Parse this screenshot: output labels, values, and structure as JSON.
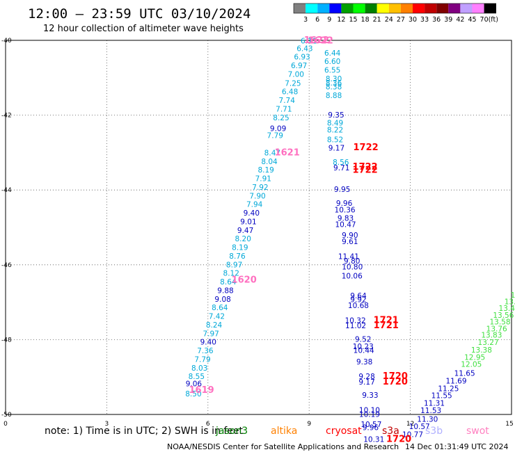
{
  "header": {
    "title": "12:00 — 23:59 UTC 03/10/2024",
    "subtitle": "12 hour collection of altimeter wave heights"
  },
  "color_scale": {
    "levels": [
      "3",
      "6",
      "9",
      "12",
      "15",
      "18",
      "21",
      "24",
      "27",
      "30",
      "33",
      "36",
      "39",
      "42",
      "45",
      "70"
    ],
    "unit": "(ft)",
    "colors": [
      "#808080",
      "#00ffff",
      "#00b0ff",
      "#0000ff",
      "#00a000",
      "#00ff00",
      "#008000",
      "#ffff00",
      "#ffc000",
      "#ff8000",
      "#ff0000",
      "#c00000",
      "#800000",
      "#800080",
      "#c0a0ff",
      "#ff80ff",
      "#000000"
    ]
  },
  "footer": {
    "note": "note:  1) Time is in UTC; 2) SWH is in feet",
    "satellites": [
      {
        "name": "jason3",
        "color": "#008000"
      },
      {
        "name": "altika",
        "color": "#ff8000"
      },
      {
        "name": "cryosat",
        "color": "#ff0000"
      },
      {
        "name": "s3a",
        "color": "#c00000"
      },
      {
        "name": "s3b",
        "color": "#b0b0ff"
      },
      {
        "name": "swot",
        "color": "#ff80c0"
      }
    ],
    "credit": "NOAA/NESDIS Center for Satellite Applications and Research",
    "timestamp": "14 Dec 01:31:49 UTC 2024"
  },
  "chart_data": {
    "type": "scatter",
    "xlabel": "",
    "ylabel": "",
    "xlim": [
      0,
      15
    ],
    "ylim": [
      -50,
      -40
    ],
    "x_ticks": [
      0,
      3,
      6,
      9,
      12,
      15
    ],
    "y_ticks": [
      -40,
      -42,
      -44,
      -46,
      -48,
      -50
    ],
    "x_tick_labels": [
      "0",
      "3",
      "6",
      "9",
      "12",
      "15"
    ],
    "y_tick_labels": [
      "-40",
      "-42",
      "-44",
      "-46",
      "-48",
      "-50"
    ],
    "grid": true,
    "series": [
      {
        "color": "#00a8d8",
        "points": [
          {
            "x": 8.99,
            "y": -40.01,
            "label": "6.11"
          },
          {
            "x": 8.87,
            "y": -40.21,
            "label": "6.43"
          },
          {
            "x": 8.79,
            "y": -40.44,
            "label": "6.93"
          },
          {
            "x": 8.7,
            "y": -40.67,
            "label": "6.97"
          },
          {
            "x": 8.61,
            "y": -40.9,
            "label": "7.00"
          },
          {
            "x": 8.52,
            "y": -41.14,
            "label": "7.25"
          },
          {
            "x": 8.43,
            "y": -41.37,
            "label": "6.48"
          },
          {
            "x": 8.34,
            "y": -41.6,
            "label": "7.74"
          },
          {
            "x": 8.25,
            "y": -41.83,
            "label": "7.71"
          },
          {
            "x": 8.17,
            "y": -42.06,
            "label": "8.25"
          },
          {
            "x": 7.99,
            "y": -42.54,
            "label": "7.79"
          },
          {
            "x": 7.91,
            "y": -43.0,
            "label": "8.47"
          },
          {
            "x": 7.82,
            "y": -43.23,
            "label": "8.04"
          },
          {
            "x": 7.72,
            "y": -43.46,
            "label": "8.19"
          },
          {
            "x": 7.64,
            "y": -43.69,
            "label": "7.91"
          },
          {
            "x": 7.55,
            "y": -43.92,
            "label": "7.92"
          },
          {
            "x": 7.47,
            "y": -44.15,
            "label": "7.90"
          },
          {
            "x": 7.38,
            "y": -44.38,
            "label": "7.94"
          },
          {
            "x": 7.04,
            "y": -45.3,
            "label": "8.20"
          },
          {
            "x": 6.95,
            "y": -45.53,
            "label": "8.19"
          },
          {
            "x": 6.87,
            "y": -45.76,
            "label": "8.76"
          },
          {
            "x": 6.78,
            "y": -45.99,
            "label": "8.97"
          },
          {
            "x": 6.69,
            "y": -46.22,
            "label": "8.12"
          },
          {
            "x": 6.6,
            "y": -46.45,
            "label": "8.64"
          },
          {
            "x": 6.35,
            "y": -47.14,
            "label": "8.64"
          },
          {
            "x": 6.26,
            "y": -47.37,
            "label": "7.42"
          },
          {
            "x": 6.18,
            "y": -47.6,
            "label": "8.24"
          },
          {
            "x": 6.09,
            "y": -47.83,
            "label": "7.97"
          },
          {
            "x": 5.92,
            "y": -48.29,
            "label": "7.36"
          },
          {
            "x": 5.84,
            "y": -48.52,
            "label": "7.79"
          },
          {
            "x": 5.75,
            "y": -48.75,
            "label": "8.03"
          },
          {
            "x": 5.66,
            "y": -48.98,
            "label": "8.55"
          },
          {
            "x": 5.57,
            "y": -49.44,
            "label": "8.50"
          },
          {
            "x": 9.69,
            "y": -40.33,
            "label": "6.44"
          },
          {
            "x": 9.69,
            "y": -40.56,
            "label": "6.60"
          },
          {
            "x": 9.69,
            "y": -40.79,
            "label": "6.55"
          },
          {
            "x": 9.73,
            "y": -41.02,
            "label": "8.30"
          },
          {
            "x": 9.73,
            "y": -41.13,
            "label": "8.36"
          },
          {
            "x": 9.73,
            "y": -41.24,
            "label": "8.38"
          },
          {
            "x": 9.73,
            "y": -41.47,
            "label": "8.88"
          },
          {
            "x": 9.77,
            "y": -42.2,
            "label": "8.49"
          },
          {
            "x": 9.77,
            "y": -42.39,
            "label": "8.22"
          },
          {
            "x": 9.77,
            "y": -42.65,
            "label": "8.52"
          },
          {
            "x": 9.94,
            "y": -43.25,
            "label": "8.56"
          }
        ]
      },
      {
        "color": "#0000c0",
        "points": [
          {
            "x": 8.08,
            "y": -42.35,
            "label": "9.09"
          },
          {
            "x": 7.29,
            "y": -44.61,
            "label": "9.40"
          },
          {
            "x": 7.2,
            "y": -44.84,
            "label": "9.01"
          },
          {
            "x": 7.11,
            "y": -45.07,
            "label": "9.47"
          },
          {
            "x": 6.44,
            "y": -46.91,
            "label": "9.08"
          },
          {
            "x": 6.52,
            "y": -46.68,
            "label": "9.88"
          },
          {
            "x": 6.01,
            "y": -48.06,
            "label": "9.40"
          },
          {
            "x": 5.58,
            "y": -49.17,
            "label": "9.06"
          },
          {
            "x": 9.8,
            "y": -41.99,
            "label": "9.35"
          },
          {
            "x": 9.81,
            "y": -42.87,
            "label": "9.17"
          },
          {
            "x": 9.96,
            "y": -43.4,
            "label": "9.71"
          },
          {
            "x": 9.98,
            "y": -43.98,
            "label": "9.95"
          },
          {
            "x": 10.04,
            "y": -44.35,
            "label": "9.96"
          },
          {
            "x": 10.06,
            "y": -44.53,
            "label": "10.36"
          },
          {
            "x": 10.08,
            "y": -44.75,
            "label": "9.83"
          },
          {
            "x": 10.08,
            "y": -44.92,
            "label": "10.47"
          },
          {
            "x": 10.21,
            "y": -45.2,
            "label": "9.90"
          },
          {
            "x": 10.21,
            "y": -45.37,
            "label": "9.61"
          },
          {
            "x": 10.17,
            "y": -45.77,
            "label": "11.41"
          },
          {
            "x": 10.27,
            "y": -45.89,
            "label": "9.80"
          },
          {
            "x": 10.28,
            "y": -46.05,
            "label": "10.80"
          },
          {
            "x": 10.27,
            "y": -46.29,
            "label": "10.06"
          },
          {
            "x": 10.46,
            "y": -46.82,
            "label": "9.64"
          },
          {
            "x": 10.46,
            "y": -46.92,
            "label": "9.92"
          },
          {
            "x": 10.46,
            "y": -47.08,
            "label": "10.68"
          },
          {
            "x": 10.37,
            "y": -47.48,
            "label": "10.32"
          },
          {
            "x": 10.38,
            "y": -47.62,
            "label": "11.02"
          },
          {
            "x": 10.6,
            "y": -47.98,
            "label": "9.52"
          },
          {
            "x": 10.6,
            "y": -48.18,
            "label": "10.23"
          },
          {
            "x": 10.62,
            "y": -48.28,
            "label": "10.44"
          },
          {
            "x": 10.64,
            "y": -48.59,
            "label": "9.38"
          },
          {
            "x": 10.71,
            "y": -48.98,
            "label": "9.28"
          },
          {
            "x": 10.71,
            "y": -49.13,
            "label": "9.17"
          },
          {
            "x": 10.81,
            "y": -49.48,
            "label": "9.33"
          },
          {
            "x": 10.79,
            "y": -49.88,
            "label": "10.10"
          },
          {
            "x": 10.79,
            "y": -49.99,
            "label": "10.19"
          },
          {
            "x": 10.84,
            "y": -50.26,
            "label": "10.57"
          },
          {
            "x": 10.82,
            "y": -50.34,
            "label": "9.96"
          },
          {
            "x": 10.92,
            "y": -50.66,
            "label": "10.31"
          },
          {
            "x": 12.07,
            "y": -50.53,
            "label": "10.77"
          },
          {
            "x": 12.27,
            "y": -50.32,
            "label": "10.57"
          },
          {
            "x": 12.51,
            "y": -50.12,
            "label": "11.30"
          },
          {
            "x": 12.61,
            "y": -49.89,
            "label": "11.53"
          },
          {
            "x": 12.71,
            "y": -49.69,
            "label": "11.31"
          },
          {
            "x": 12.93,
            "y": -49.49,
            "label": "11.55"
          },
          {
            "x": 13.13,
            "y": -49.3,
            "label": "11.25"
          },
          {
            "x": 13.36,
            "y": -49.1,
            "label": "11.69"
          },
          {
            "x": 13.61,
            "y": -48.89,
            "label": "11.65"
          }
        ]
      },
      {
        "color": "#40e040",
        "points": [
          {
            "x": 13.81,
            "y": -48.65,
            "label": "12.05"
          },
          {
            "x": 13.91,
            "y": -48.47,
            "label": "12.95"
          },
          {
            "x": 14.11,
            "y": -48.27,
            "label": "13.38"
          },
          {
            "x": 14.31,
            "y": -48.07,
            "label": "13.27"
          },
          {
            "x": 14.41,
            "y": -47.87,
            "label": "13.83"
          },
          {
            "x": 14.56,
            "y": -47.7,
            "label": "13.76"
          },
          {
            "x": 14.66,
            "y": -47.52,
            "label": "13.58"
          },
          {
            "x": 14.76,
            "y": -47.34,
            "label": "13.56"
          },
          {
            "x": 14.86,
            "y": -47.16,
            "label": "13.4"
          },
          {
            "x": 14.96,
            "y": -46.98,
            "label": "13."
          },
          {
            "x": 15.04,
            "y": -46.8,
            "label": "1"
          }
        ]
      },
      {
        "color": "#ff70c0",
        "points": [
          {
            "x": 9.22,
            "y": -40.0,
            "label": "1622"
          },
          {
            "x": 9.34,
            "y": -40.01,
            "label": "1622"
          },
          {
            "x": 8.35,
            "y": -43.0,
            "label": "1621"
          },
          {
            "x": 7.07,
            "y": -46.4,
            "label": "1620"
          },
          {
            "x": 5.81,
            "y": -49.35,
            "label": "1619"
          }
        ]
      },
      {
        "color": "#ff0000",
        "points": [
          {
            "x": 10.68,
            "y": -42.86,
            "label": "1722"
          },
          {
            "x": 10.66,
            "y": -43.38,
            "label": "1722"
          },
          {
            "x": 10.66,
            "y": -43.47,
            "label": "1722"
          },
          {
            "x": 11.28,
            "y": -47.48,
            "label": "1721"
          },
          {
            "x": 11.28,
            "y": -47.62,
            "label": "1721"
          },
          {
            "x": 11.55,
            "y": -48.98,
            "label": "1720"
          },
          {
            "x": 11.55,
            "y": -49.13,
            "label": "1720"
          },
          {
            "x": 11.66,
            "y": -50.66,
            "label": "1720"
          }
        ]
      }
    ]
  }
}
